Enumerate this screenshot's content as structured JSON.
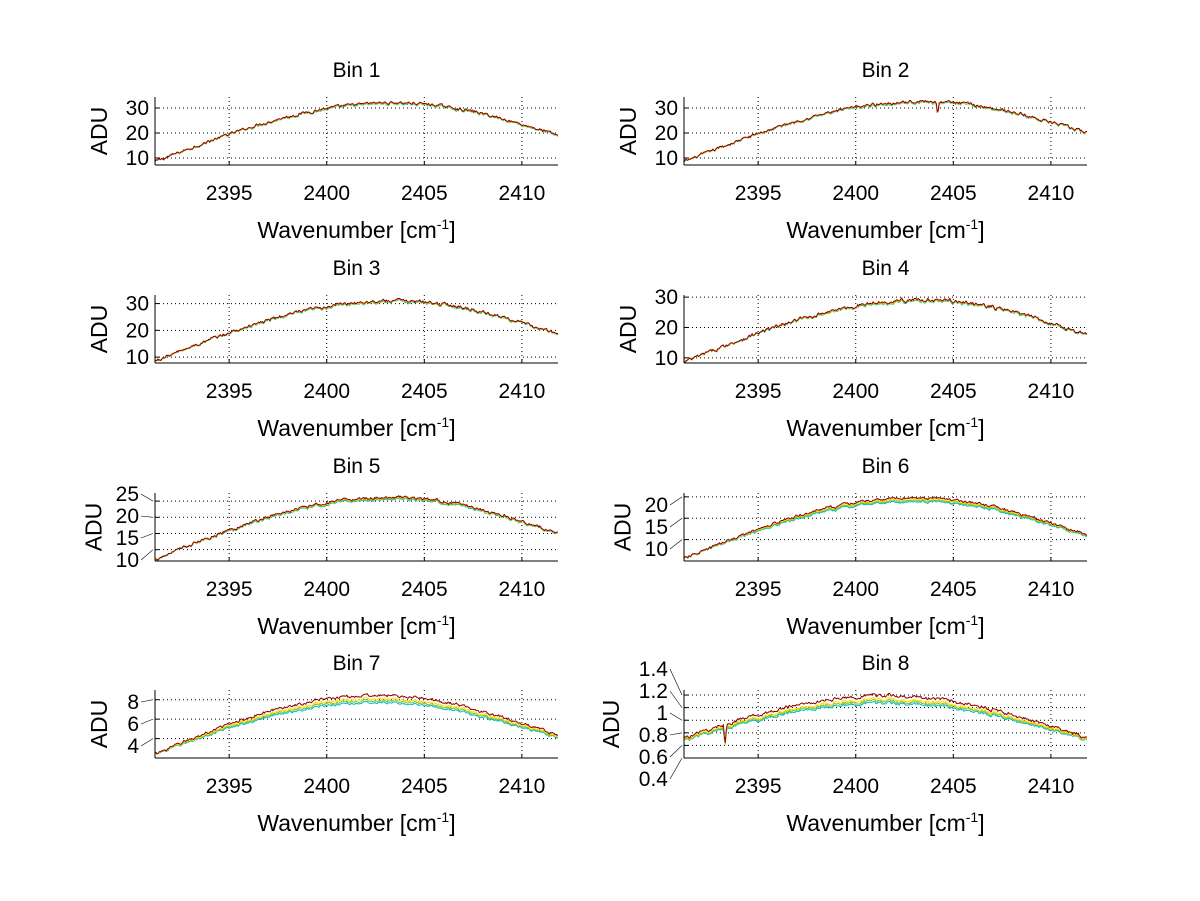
{
  "chart_data": [
    {
      "type": "line",
      "title": "Bin 1",
      "xlabel": "Wavenumber [cm",
      "xlabel_sup": "-1",
      "xlabel_end": "]",
      "ylabel": "ADU",
      "xlim": [
        2391.2,
        2411.85
      ],
      "ylim": [
        7.2,
        34.4
      ],
      "xticks": [
        2395,
        2400,
        2405,
        2410
      ],
      "yticks": [
        10,
        20,
        30
      ],
      "grid": true,
      "profile": {
        "start": 8.5,
        "peak": 32,
        "end": 19,
        "peak_x": 2403.5,
        "noise": 0.9,
        "spread": 0.25
      },
      "features": [],
      "series": [
        {
          "name": "series-1",
          "color": "#00bfbf",
          "offset": -0.3
        },
        {
          "name": "series-2",
          "color": "#7fbf3f",
          "offset": -0.15
        },
        {
          "name": "series-3",
          "color": "#ffdd00",
          "offset": 0.0
        },
        {
          "name": "series-4",
          "color": "#8b0000",
          "offset": 0.15
        }
      ]
    },
    {
      "type": "line",
      "title": "Bin 2",
      "xlabel": "Wavenumber [cm",
      "xlabel_sup": "-1",
      "xlabel_end": "]",
      "ylabel": "ADU",
      "xlim": [
        2391.2,
        2411.85
      ],
      "ylim": [
        7.2,
        34.4
      ],
      "xticks": [
        2395,
        2400,
        2405,
        2410
      ],
      "yticks": [
        10,
        20,
        30
      ],
      "grid": true,
      "profile": {
        "start": 8.5,
        "peak": 32.5,
        "end": 20,
        "peak_x": 2403.5,
        "noise": 0.9,
        "spread": 0.25
      },
      "features": [
        {
          "x": 2404.2,
          "depth": 5
        }
      ],
      "series": [
        {
          "name": "series-1",
          "color": "#00bfbf",
          "offset": -0.3
        },
        {
          "name": "series-2",
          "color": "#7fbf3f",
          "offset": -0.15
        },
        {
          "name": "series-3",
          "color": "#ffdd00",
          "offset": 0.0
        },
        {
          "name": "series-4",
          "color": "#8b0000",
          "offset": 0.15
        }
      ]
    },
    {
      "type": "line",
      "title": "Bin 3",
      "xlabel": "Wavenumber [cm",
      "xlabel_sup": "-1",
      "xlabel_end": "]",
      "ylabel": "ADU",
      "xlim": [
        2391.2,
        2411.85
      ],
      "ylim": [
        7.8,
        33.2
      ],
      "xticks": [
        2395,
        2400,
        2405,
        2410
      ],
      "yticks": [
        10,
        20,
        30
      ],
      "grid": true,
      "profile": {
        "start": 8.5,
        "peak": 31,
        "end": 18.5,
        "peak_x": 2403.5,
        "noise": 0.9,
        "spread": 0.25
      },
      "features": [],
      "series": [
        {
          "name": "series-1",
          "color": "#00bfbf",
          "offset": -0.3
        },
        {
          "name": "series-2",
          "color": "#7fbf3f",
          "offset": -0.15
        },
        {
          "name": "series-3",
          "color": "#ffdd00",
          "offset": 0.0
        },
        {
          "name": "series-4",
          "color": "#8b0000",
          "offset": 0.15
        }
      ]
    },
    {
      "type": "line",
      "title": "Bin 4",
      "xlabel": "Wavenumber [cm",
      "xlabel_sup": "-1",
      "xlabel_end": "]",
      "ylabel": "ADU",
      "xlim": [
        2391.2,
        2411.85
      ],
      "ylim": [
        8.3,
        30.7
      ],
      "xticks": [
        2395,
        2400,
        2405,
        2410
      ],
      "yticks": [
        10,
        20,
        30
      ],
      "grid": true,
      "profile": {
        "start": 8.5,
        "peak": 29,
        "end": 17.5,
        "peak_x": 2403.5,
        "noise": 0.9,
        "spread": 0.25
      },
      "features": [],
      "series": [
        {
          "name": "series-1",
          "color": "#00bfbf",
          "offset": -0.3
        },
        {
          "name": "series-2",
          "color": "#7fbf3f",
          "offset": -0.15
        },
        {
          "name": "series-3",
          "color": "#ffdd00",
          "offset": 0.0
        },
        {
          "name": "series-4",
          "color": "#8b0000",
          "offset": 0.15
        }
      ]
    },
    {
      "type": "line",
      "title": "Bin 5",
      "xlabel": "Wavenumber [cm",
      "xlabel_sup": "-1",
      "xlabel_end": "]",
      "ylabel": "ADU",
      "xlim": [
        2391.2,
        2411.85
      ],
      "ylim": [
        6.5,
        27.5
      ],
      "xticks": [
        2395,
        2400,
        2405,
        2410
      ],
      "yticks": [
        10,
        15,
        20,
        25
      ],
      "grid": true,
      "profile": {
        "start": 7,
        "peak": 26,
        "end": 15,
        "peak_x": 2403.3,
        "noise": 0.7,
        "spread": 0.3
      },
      "features": [],
      "series": [
        {
          "name": "series-1",
          "color": "#00bfbf",
          "offset": -0.4
        },
        {
          "name": "series-2",
          "color": "#7fbf3f",
          "offset": -0.2
        },
        {
          "name": "series-3",
          "color": "#ffdd00",
          "offset": 0.0
        },
        {
          "name": "series-4",
          "color": "#8b0000",
          "offset": 0.2
        }
      ]
    },
    {
      "type": "line",
      "title": "Bin 6",
      "xlabel": "Wavenumber [cm",
      "xlabel_sup": "-1",
      "xlabel_end": "]",
      "ylabel": "ADU",
      "xlim": [
        2391.2,
        2411.85
      ],
      "ylim": [
        5,
        20.9
      ],
      "xticks": [
        2395,
        2400,
        2405,
        2410
      ],
      "yticks": [
        10,
        15,
        20
      ],
      "grid": true,
      "profile": {
        "start": 5.5,
        "peak": 19.5,
        "end": 11,
        "peak_x": 2403.0,
        "noise": 0.5,
        "spread": 0.35
      },
      "features": [],
      "series": [
        {
          "name": "series-1",
          "color": "#00bfbf",
          "offset": -0.6
        },
        {
          "name": "series-2",
          "color": "#7fbf3f",
          "offset": -0.3
        },
        {
          "name": "series-3",
          "color": "#ffdd00",
          "offset": 0.0
        },
        {
          "name": "series-4",
          "color": "#8b0000",
          "offset": 0.3
        }
      ]
    },
    {
      "type": "line",
      "title": "Bin 7",
      "xlabel": "Wavenumber [cm",
      "xlabel_sup": "-1",
      "xlabel_end": "]",
      "ylabel": "ADU",
      "xlim": [
        2391.2,
        2411.85
      ],
      "ylim": [
        2.0,
        9.0
      ],
      "xticks": [
        2395,
        2400,
        2405,
        2410
      ],
      "yticks": [
        4,
        6,
        8
      ],
      "grid": true,
      "profile": {
        "start": 2.4,
        "peak": 8.1,
        "end": 4.2,
        "peak_x": 2402.5,
        "noise": 0.22,
        "spread": 0.45
      },
      "features": [],
      "series": [
        {
          "name": "series-1",
          "color": "#00bfbf",
          "offset": -0.4
        },
        {
          "name": "series-2",
          "color": "#7fbf3f",
          "offset": -0.2
        },
        {
          "name": "series-3",
          "color": "#ffdd00",
          "offset": 0.0
        },
        {
          "name": "series-4",
          "color": "#8b0000",
          "offset": 0.35
        }
      ]
    },
    {
      "type": "line",
      "title": "Bin 8",
      "xlabel": "Wavenumber [cm",
      "xlabel_sup": "-1",
      "xlabel_end": "]",
      "ylabel": "ADU",
      "xlim": [
        2391.2,
        2411.85
      ],
      "ylim": [
        0.4,
        1.48
      ],
      "xticks": [
        2395,
        2400,
        2405,
        2410
      ],
      "yticks": [
        0.4,
        0.6,
        0.8,
        1,
        1.2,
        1.4
      ],
      "grid": true,
      "profile": {
        "start": 0.7,
        "peak": 1.33,
        "end": 0.7,
        "peak_x": 2401.5,
        "noise": 0.04,
        "spread": 0.6
      },
      "features": [
        {
          "x": 2393.3,
          "depth": 0.3
        }
      ],
      "series": [
        {
          "name": "series-1",
          "color": "#00bfbf",
          "offset": -0.06
        },
        {
          "name": "series-2",
          "color": "#7fbf3f",
          "offset": -0.03
        },
        {
          "name": "series-3",
          "color": "#ffdd00",
          "offset": 0.0
        },
        {
          "name": "series-4",
          "color": "#8b0000",
          "offset": 0.06
        }
      ]
    }
  ]
}
